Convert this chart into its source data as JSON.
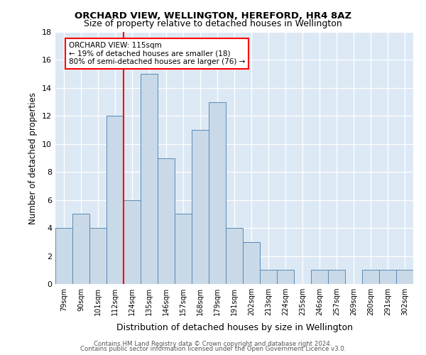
{
  "title": "ORCHARD VIEW, WELLINGTON, HEREFORD, HR4 8AZ",
  "subtitle": "Size of property relative to detached houses in Wellington",
  "xlabel": "Distribution of detached houses by size in Wellington",
  "ylabel": "Number of detached properties",
  "categories": [
    "79sqm",
    "90sqm",
    "101sqm",
    "112sqm",
    "124sqm",
    "135sqm",
    "146sqm",
    "157sqm",
    "168sqm",
    "179sqm",
    "191sqm",
    "202sqm",
    "213sqm",
    "224sqm",
    "235sqm",
    "246sqm",
    "257sqm",
    "269sqm",
    "280sqm",
    "291sqm",
    "302sqm"
  ],
  "values": [
    4,
    5,
    4,
    12,
    6,
    15,
    9,
    5,
    11,
    13,
    4,
    3,
    1,
    1,
    0,
    1,
    1,
    0,
    1,
    1,
    1
  ],
  "bar_color": "#c9d9e8",
  "bar_edge_color": "#5a8ab5",
  "red_line_index": 3.5,
  "annotation_line1": "ORCHARD VIEW: 115sqm",
  "annotation_line2": "← 19% of detached houses are smaller (18)",
  "annotation_line3": "80% of semi-detached houses are larger (76) →",
  "annotation_box_color": "white",
  "annotation_box_edge_color": "red",
  "red_line_color": "red",
  "ylim": [
    0,
    18
  ],
  "yticks": [
    0,
    2,
    4,
    6,
    8,
    10,
    12,
    14,
    16,
    18
  ],
  "footer_line1": "Contains HM Land Registry data © Crown copyright and database right 2024.",
  "footer_line2": "Contains public sector information licensed under the Open Government Licence v3.0.",
  "plot_bg_color": "#dce9f5"
}
